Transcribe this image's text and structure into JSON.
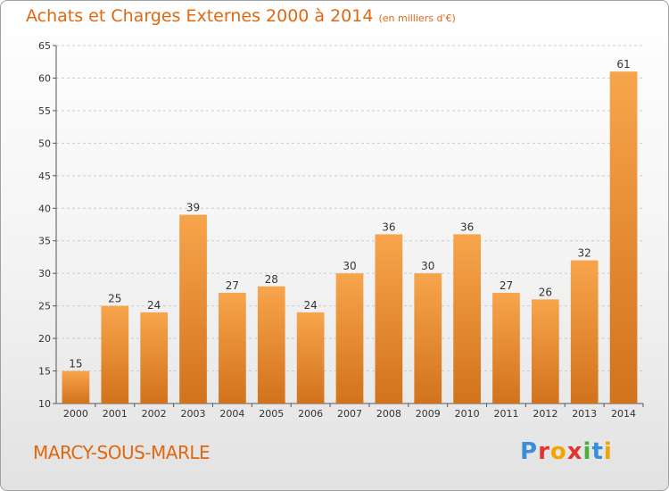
{
  "header": {
    "title": "Achats et Charges Externes 2000 à 2014",
    "unit": "(en milliers d'€)"
  },
  "footer": {
    "commune": "MARCY-SOUS-MARLE",
    "logo": "Proxiti"
  },
  "colors": {
    "bar_light": "#f7a54c",
    "bar_dark": "#d2721c",
    "title": "#e06810",
    "grid": "#cccccc"
  },
  "chart_data": {
    "type": "bar",
    "title": "Achats et Charges Externes 2000 à 2014",
    "subtitle": "(en milliers d'€)",
    "categories": [
      "2000",
      "2001",
      "2002",
      "2003",
      "2004",
      "2005",
      "2006",
      "2007",
      "2008",
      "2009",
      "2010",
      "2011",
      "2012",
      "2013",
      "2014"
    ],
    "values": [
      15,
      25,
      24,
      39,
      27,
      28,
      24,
      30,
      36,
      30,
      36,
      27,
      26,
      32,
      61
    ],
    "ylim": [
      10,
      65
    ],
    "yticks": [
      10,
      15,
      20,
      25,
      30,
      35,
      40,
      45,
      50,
      55,
      60,
      65
    ],
    "grid": true,
    "legend": "none"
  }
}
